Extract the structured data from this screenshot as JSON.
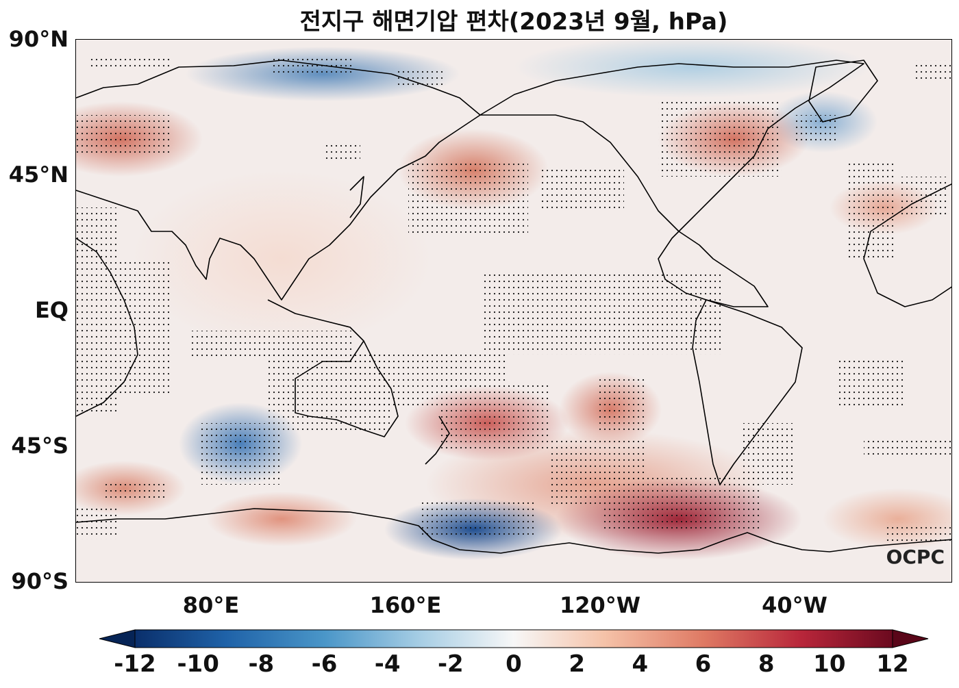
{
  "title": "전지구 해면기압 편차(2023년 9월, hPa)",
  "lat_labels": [
    "90°N",
    "45°N",
    "EQ",
    "45°S",
    "90°S"
  ],
  "lon_labels": [
    "80°E",
    "160°E",
    "120°W",
    "40°W"
  ],
  "colorbar": {
    "ticks": [
      "-12",
      "-10",
      "-8",
      "-6",
      "-4",
      "-2",
      "0",
      "2",
      "4",
      "6",
      "8",
      "10",
      "12"
    ],
    "colormap": "RdBu_r",
    "extend": "both",
    "low_color": "#0a2f6b",
    "mid_color": "#f7f7f7",
    "high_color": "#6b0a1f"
  },
  "logo": "OCPC"
}
